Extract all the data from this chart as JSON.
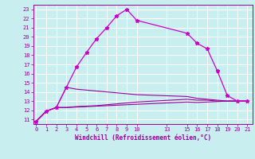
{
  "xlabel": "Windchill (Refroidissement éolien,°C)",
  "bg_color": "#c8eef0",
  "grid_color": "#ffffff",
  "line_color": "#990099",
  "line_color2": "#cc00cc",
  "x_ticks": [
    0,
    1,
    2,
    3,
    4,
    5,
    6,
    7,
    8,
    9,
    10,
    13,
    15,
    16,
    17,
    18,
    19,
    20,
    21
  ],
  "y_ticks": [
    11,
    12,
    13,
    14,
    15,
    16,
    17,
    18,
    19,
    20,
    21,
    22,
    23
  ],
  "xlim": [
    -0.3,
    21.5
  ],
  "ylim": [
    10.5,
    23.5
  ],
  "line1_x": [
    0,
    1,
    2,
    3,
    4,
    5,
    6,
    7,
    8,
    9,
    10,
    15,
    16,
    17,
    18,
    19,
    20,
    21
  ],
  "line1_y": [
    10.8,
    11.9,
    12.3,
    14.5,
    16.7,
    18.3,
    19.8,
    21.0,
    22.3,
    23.0,
    21.8,
    20.4,
    19.3,
    18.7,
    16.3,
    13.6,
    13.0,
    13.0
  ],
  "line2_x": [
    0,
    1,
    2,
    3,
    4,
    5,
    6,
    7,
    8,
    9,
    10,
    15,
    16,
    17,
    18,
    19,
    20,
    21
  ],
  "line2_y": [
    10.8,
    11.9,
    12.3,
    14.5,
    14.3,
    14.2,
    14.1,
    14.0,
    13.9,
    13.8,
    13.7,
    13.5,
    13.3,
    13.2,
    13.1,
    13.0,
    13.0,
    13.0
  ],
  "line3_x": [
    0,
    1,
    2,
    3,
    4,
    5,
    6,
    7,
    8,
    9,
    10,
    15,
    16,
    17,
    18,
    19,
    20,
    21
  ],
  "line3_y": [
    10.8,
    11.9,
    12.3,
    12.3,
    12.4,
    12.45,
    12.5,
    12.6,
    12.7,
    12.8,
    12.9,
    13.2,
    13.1,
    13.1,
    13.0,
    13.0,
    13.0,
    13.0
  ],
  "line4_x": [
    0,
    1,
    2,
    3,
    4,
    5,
    6,
    7,
    8,
    9,
    10,
    15,
    16,
    17,
    18,
    19,
    20,
    21
  ],
  "line4_y": [
    10.8,
    11.9,
    12.3,
    12.3,
    12.35,
    12.4,
    12.45,
    12.5,
    12.55,
    12.6,
    12.65,
    12.9,
    12.85,
    12.9,
    12.95,
    13.0,
    13.0,
    13.0
  ]
}
